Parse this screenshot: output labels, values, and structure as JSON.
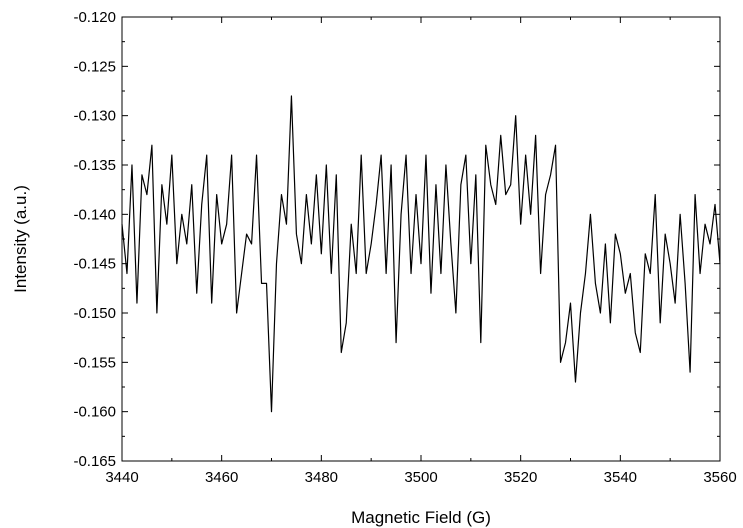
{
  "chart_data": {
    "type": "line",
    "title": "",
    "xlabel": "Magnetic Field (G)",
    "ylabel": "Intensity (a.u.)",
    "xlim": [
      3440,
      3560
    ],
    "ylim": [
      -0.165,
      -0.12
    ],
    "x_ticks": [
      3440,
      3460,
      3480,
      3500,
      3520,
      3540,
      3560
    ],
    "x_tick_labels": [
      "3440",
      "3460",
      "3480",
      "3500",
      "3520",
      "3540",
      "3560"
    ],
    "y_ticks": [
      -0.165,
      -0.16,
      -0.155,
      -0.15,
      -0.145,
      -0.14,
      -0.135,
      -0.13,
      -0.125,
      -0.12
    ],
    "y_tick_labels": [
      "-0.165",
      "-0.160",
      "-0.155",
      "-0.150",
      "-0.145",
      "-0.140",
      "-0.135",
      "-0.130",
      "-0.125",
      "-0.120"
    ],
    "grid": false,
    "legend": "none",
    "line_color": "#000000",
    "series": [
      {
        "x": [
          3440,
          3441,
          3442,
          3443,
          3444,
          3445,
          3446,
          3447,
          3448,
          3449,
          3450,
          3451,
          3452,
          3453,
          3454,
          3455,
          3456,
          3457,
          3458,
          3459,
          3460,
          3461,
          3462,
          3463,
          3464,
          3465,
          3466,
          3467,
          3468,
          3469,
          3470,
          3471,
          3472,
          3473,
          3474,
          3475,
          3476,
          3477,
          3478,
          3479,
          3480,
          3481,
          3482,
          3483,
          3484,
          3485,
          3486,
          3487,
          3488,
          3489,
          3490,
          3491,
          3492,
          3493,
          3494,
          3495,
          3496,
          3497,
          3498,
          3499,
          3500,
          3501,
          3502,
          3503,
          3504,
          3505,
          3506,
          3507,
          3508,
          3509,
          3510,
          3511,
          3512,
          3513,
          3514,
          3515,
          3516,
          3517,
          3518,
          3519,
          3520,
          3521,
          3522,
          3523,
          3524,
          3525,
          3526,
          3527,
          3528,
          3529,
          3530,
          3531,
          3532,
          3533,
          3534,
          3535,
          3536,
          3537,
          3538,
          3539,
          3540,
          3541,
          3542,
          3543,
          3544,
          3545,
          3546,
          3547,
          3548,
          3549,
          3550,
          3551,
          3552,
          3553,
          3554,
          3555,
          3556,
          3557,
          3558,
          3559,
          3560
        ],
        "y": [
          -0.141,
          -0.146,
          -0.135,
          -0.149,
          -0.136,
          -0.138,
          -0.133,
          -0.15,
          -0.137,
          -0.141,
          -0.134,
          -0.145,
          -0.14,
          -0.143,
          -0.137,
          -0.148,
          -0.139,
          -0.134,
          -0.149,
          -0.138,
          -0.143,
          -0.141,
          -0.134,
          -0.15,
          -0.146,
          -0.142,
          -0.143,
          -0.134,
          -0.147,
          -0.147,
          -0.16,
          -0.145,
          -0.138,
          -0.141,
          -0.128,
          -0.142,
          -0.145,
          -0.138,
          -0.143,
          -0.136,
          -0.144,
          -0.135,
          -0.146,
          -0.136,
          -0.154,
          -0.151,
          -0.141,
          -0.146,
          -0.134,
          -0.146,
          -0.143,
          -0.139,
          -0.134,
          -0.146,
          -0.135,
          -0.153,
          -0.14,
          -0.134,
          -0.146,
          -0.138,
          -0.145,
          -0.134,
          -0.148,
          -0.137,
          -0.146,
          -0.135,
          -0.143,
          -0.15,
          -0.137,
          -0.134,
          -0.145,
          -0.136,
          -0.153,
          -0.133,
          -0.137,
          -0.139,
          -0.132,
          -0.138,
          -0.137,
          -0.13,
          -0.141,
          -0.134,
          -0.14,
          -0.132,
          -0.146,
          -0.138,
          -0.136,
          -0.133,
          -0.155,
          -0.153,
          -0.149,
          -0.157,
          -0.15,
          -0.146,
          -0.14,
          -0.147,
          -0.15,
          -0.143,
          -0.151,
          -0.142,
          -0.144,
          -0.148,
          -0.146,
          -0.152,
          -0.154,
          -0.144,
          -0.146,
          -0.138,
          -0.151,
          -0.142,
          -0.145,
          -0.149,
          -0.14,
          -0.147,
          -0.156,
          -0.138,
          -0.146,
          -0.141,
          -0.143,
          -0.139,
          -0.145
        ]
      }
    ]
  }
}
